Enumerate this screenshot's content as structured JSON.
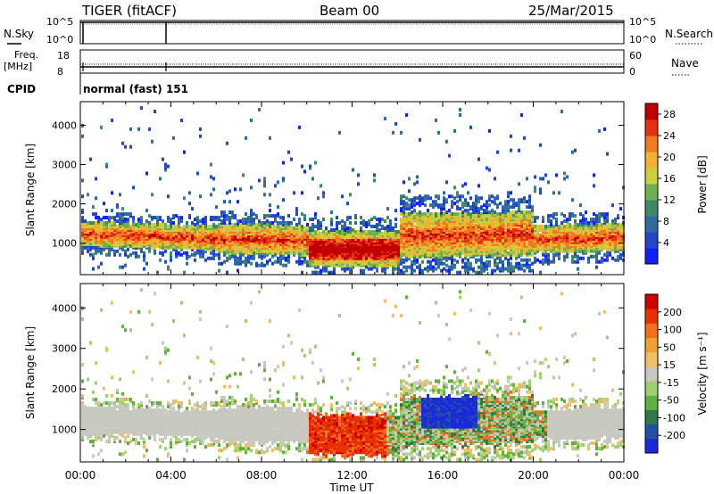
{
  "header": {
    "station": "TIGER (fitACF)",
    "beam": "Beam 00",
    "date": "25/Mar/2015"
  },
  "noise_panel": {
    "left_label": "N.Sky",
    "right_label": "N.Search",
    "left_ticks": [
      "10^5",
      "10^0"
    ],
    "right_ticks": [
      "10^5",
      "10^0"
    ]
  },
  "freq_panel": {
    "left_label_line1": "Freq.",
    "left_label_line2": "[MHz]",
    "right_label": "Nave",
    "left_ticks": [
      "18",
      "8"
    ],
    "right_ticks": [
      "60",
      "0"
    ]
  },
  "cpid_panel": {
    "label": "CPID",
    "value": "normal (fast) 151"
  },
  "chart_data": [
    {
      "type": "heatmap",
      "name": "power",
      "ylabel": "Slant Range [km]",
      "y_ticks": [
        1000,
        2000,
        3000,
        4000
      ],
      "ylim": [
        200,
        4600
      ],
      "x_ticks": [
        "00:00",
        "04:00",
        "08:00",
        "12:00",
        "16:00",
        "20:00",
        "00:00"
      ],
      "xlim_hours": [
        0,
        24
      ],
      "colorbar": {
        "label": "Power [dB]",
        "ticks": [
          4,
          8,
          12,
          16,
          20,
          24,
          28
        ],
        "range": [
          0,
          30
        ],
        "colors": [
          "#1020ff",
          "#2048c8",
          "#2f6aa0",
          "#3f8a66",
          "#70b050",
          "#c9d040",
          "#f0b030",
          "#f07a20",
          "#e83010",
          "#c00000"
        ]
      }
    },
    {
      "type": "heatmap",
      "name": "velocity",
      "ylabel": "Slant Range [km]",
      "y_ticks": [
        1000,
        2000,
        3000,
        4000
      ],
      "ylim": [
        200,
        4600
      ],
      "x_ticks": [
        "00:00",
        "04:00",
        "08:00",
        "12:00",
        "16:00",
        "20:00",
        "00:00"
      ],
      "xlim_hours": [
        0,
        24
      ],
      "xlabel": "Time UT",
      "colorbar": {
        "label": "Velocity [m s⁻¹]",
        "ticks": [
          200,
          100,
          50,
          15,
          -15,
          -50,
          -100,
          -200
        ],
        "colors": [
          "#1a2ad8",
          "#2050a8",
          "#2f7a48",
          "#5fb040",
          "#9fd070",
          "#c8c8c0",
          "#f0c060",
          "#f0a030",
          "#f07020",
          "#e83000",
          "#d00000"
        ]
      }
    }
  ]
}
